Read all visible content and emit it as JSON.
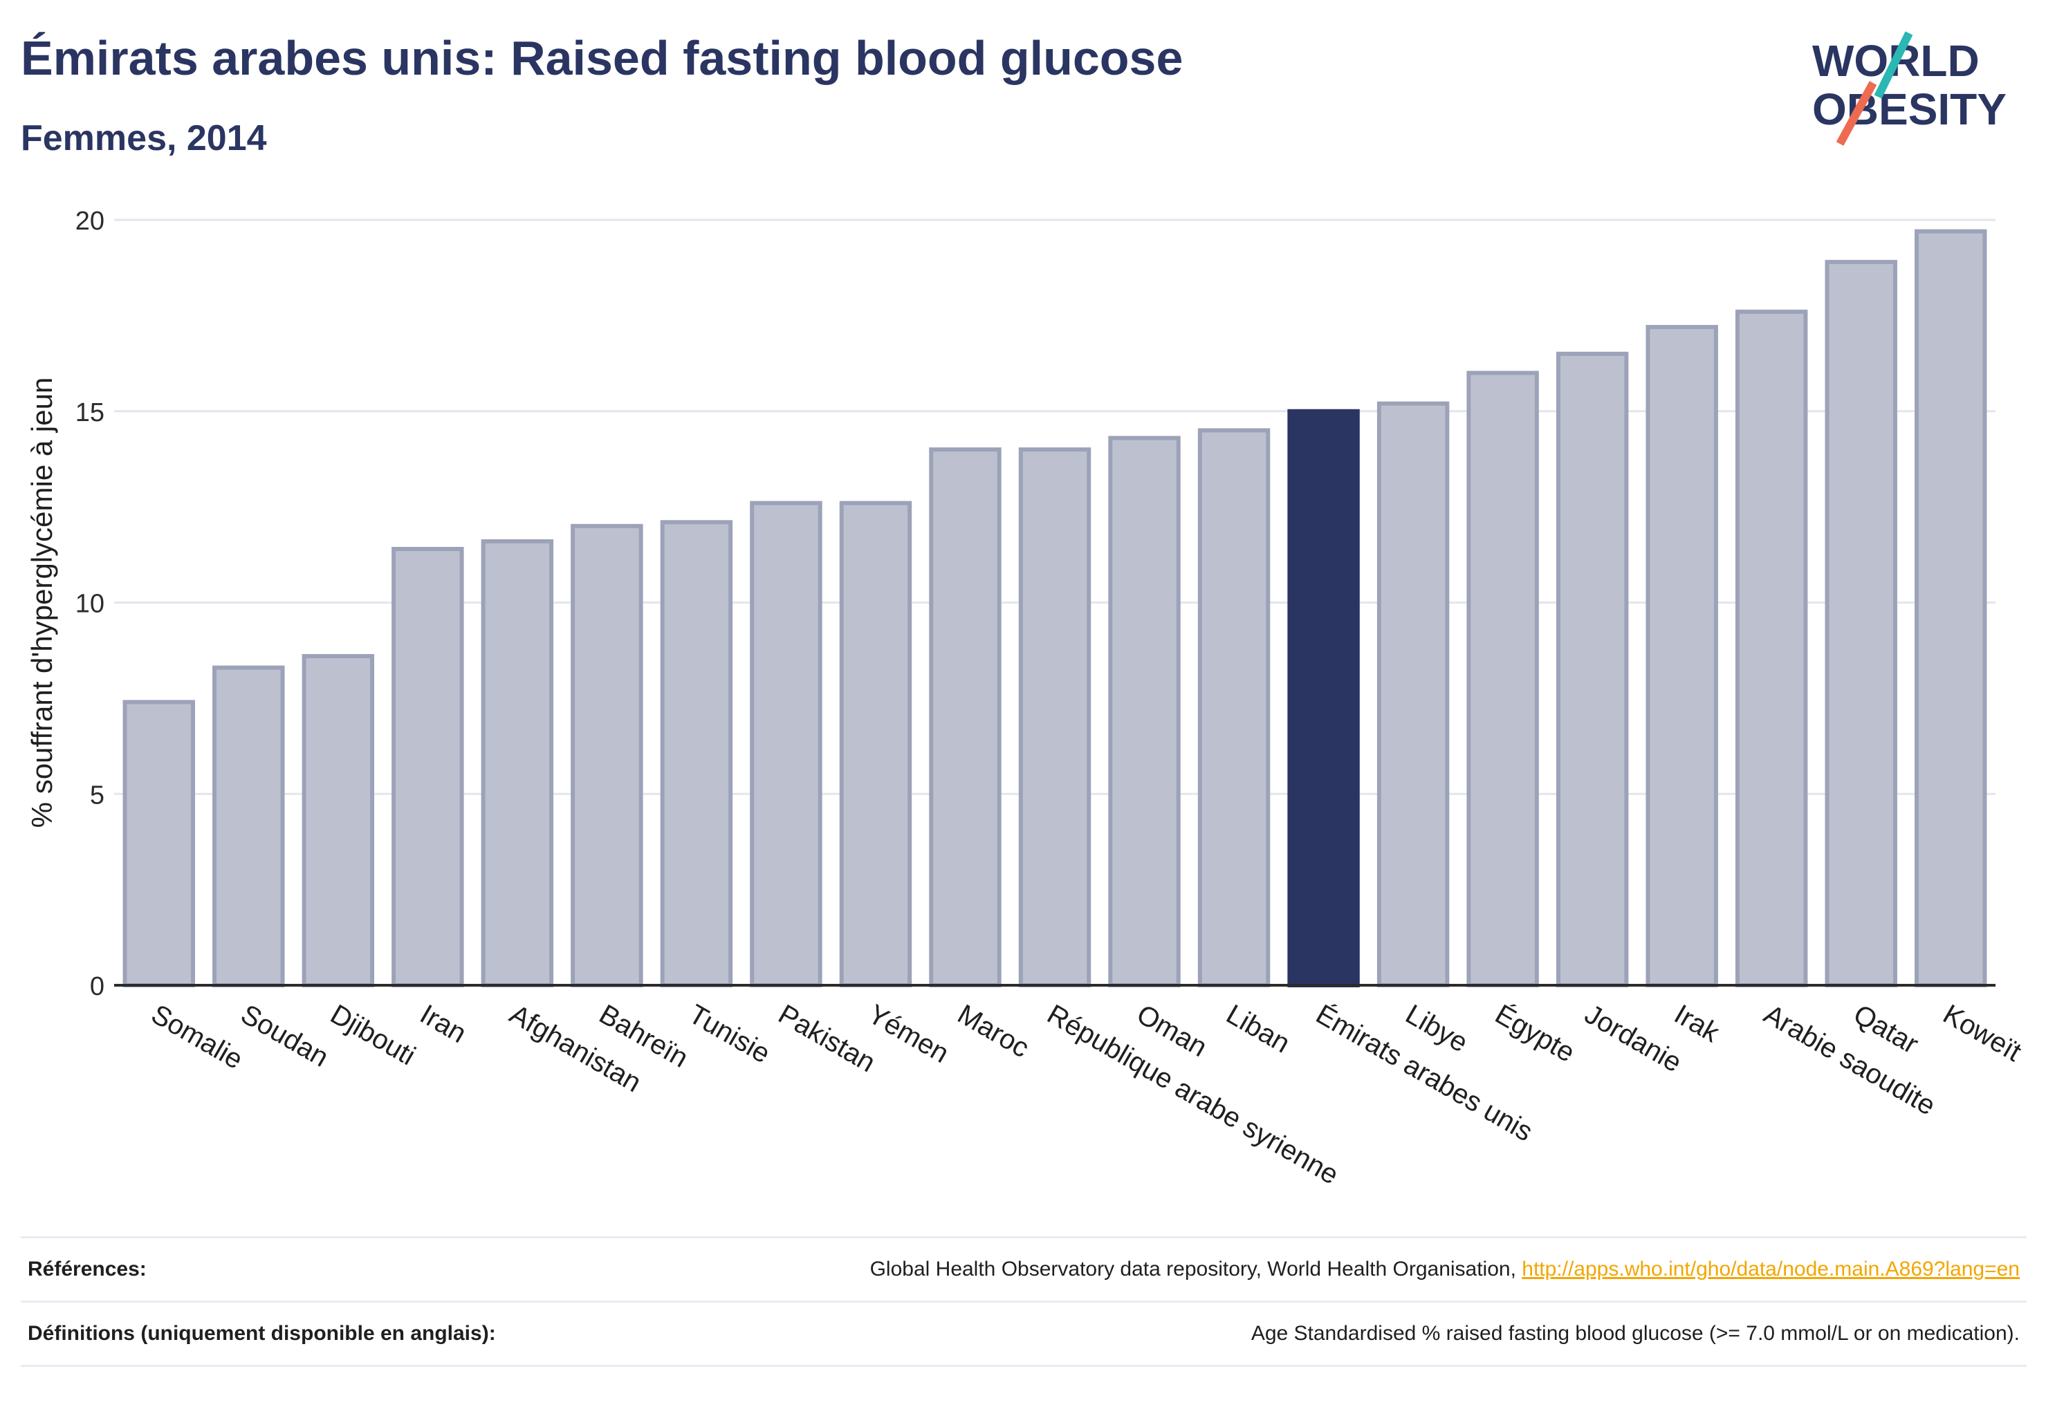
{
  "header": {
    "title": "Émirats arabes unis: Raised fasting blood glucose",
    "subtitle": "Femmes, 2014"
  },
  "logo": {
    "line1": "WORLD",
    "line2": "OBESITY"
  },
  "chart_data": {
    "type": "bar",
    "title": "Émirats arabes unis: Raised fasting blood glucose",
    "subtitle": "Femmes, 2014",
    "ylabel": "% souffrant d'hyperglycémie à jeun",
    "xlabel": "",
    "ylim": [
      0,
      20
    ],
    "yticks": [
      0,
      5,
      10,
      15,
      20
    ],
    "grid": true,
    "highlight": "Émirats arabes unis",
    "colors": {
      "bar": "#bdc1cf",
      "bar_border": "#9ca2b8",
      "highlight": "#2a3562",
      "grid": "#e4e6ee"
    },
    "categories": [
      "Somalie",
      "Soudan",
      "Djibouti",
      "Iran",
      "Afghanistan",
      "Bahreïn",
      "Tunisie",
      "Pakistan",
      "Yémen",
      "Maroc",
      "République arabe syrienne",
      "Oman",
      "Liban",
      "Émirats arabes unis",
      "Libye",
      "Égypte",
      "Jordanie",
      "Irak",
      "Arabie saoudite",
      "Qatar",
      "Koweït"
    ],
    "values": [
      7.4,
      8.3,
      8.6,
      11.4,
      11.6,
      12.0,
      12.1,
      12.6,
      12.6,
      14.0,
      14.0,
      14.3,
      14.5,
      15.0,
      15.2,
      16.0,
      16.5,
      17.2,
      17.6,
      18.9,
      19.7
    ]
  },
  "references": {
    "refs_label": "Références:",
    "refs_text": "Global Health Observatory data repository, World Health Organisation, ",
    "refs_link": "http://apps.who.int/gho/data/node.main.A869?lang=en",
    "defs_label": "Définitions (uniquement disponible en anglais):",
    "defs_text": "Age Standardised % raised fasting blood glucose (>= 7.0 mmol/L or on medication)."
  }
}
